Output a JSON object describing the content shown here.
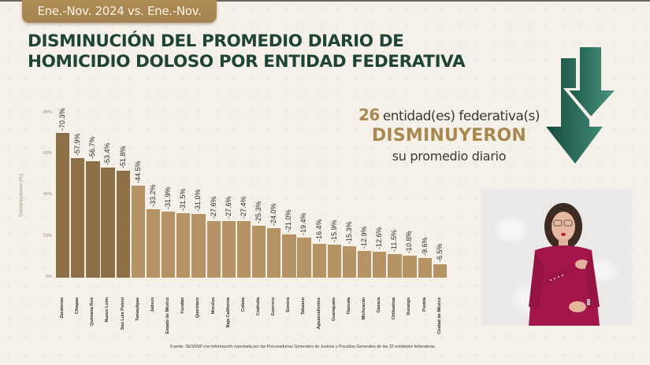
{
  "header": {
    "period_badge": "Ene.-Nov. 2024 vs. Ene.-Nov. 2025",
    "title_line1": "DISMINUCIÓN DEL PROMEDIO DIARIO DE",
    "title_line2": "HOMICIDIO DOLOSO POR ENTIDAD FEDERATIVA"
  },
  "summary": {
    "count": "26",
    "line1_text": "entidad(es) federativa(s)",
    "line2": "DISMINUYERON",
    "line3": "su promedio diario",
    "icon": "double-down-arrow-icon"
  },
  "colors": {
    "title_green": "#1e4435",
    "gold": "#a8884f",
    "bar_dark": "#8d7048",
    "bar_light": "#b59365",
    "arrow_dark": "#174a3c",
    "arrow_light": "#3f8a76"
  },
  "source": "Fuente: SESNSP con información reportada por las Procuradurías Generales de Justicia y Fiscalías Generales de las 32 entidades federativas.",
  "video_inset": {
    "description": "sign-language-interpreter"
  },
  "chart_data": {
    "type": "bar",
    "title": "DISMINUCIÓN DEL PROMEDIO DIARIO DE HOMICIDIO DOLOSO POR ENTIDAD FEDERATIVA",
    "subtitle": "Ene.-Nov. 2024 vs. Ene.-Nov. 2025",
    "xlabel": "",
    "ylabel": "Disminuciones (%)",
    "ylim": [
      0,
      80
    ],
    "yticks": [
      "0%",
      "20%",
      "40%",
      "60%",
      "80%"
    ],
    "grid": false,
    "legend": null,
    "categories": [
      "Zacatecas",
      "Chiapas",
      "Quintana Roo",
      "Nuevo León",
      "San Luis Potosí",
      "Tamaulipas",
      "Jalisco",
      "Estado de México",
      "Yucatán",
      "Querétaro",
      "Morelos",
      "Baja California",
      "Colima",
      "Coahuila",
      "Guerrero",
      "Sonora",
      "Tabasco",
      "Aguascalientes",
      "Guanajuato",
      "Tlaxcala",
      "Michoacán",
      "Oaxaca",
      "Chihuahua",
      "Durango",
      "Puebla",
      "Ciudad de México"
    ],
    "values": [
      70.3,
      57.9,
      56.7,
      53.4,
      51.8,
      44.5,
      33.2,
      31.9,
      31.5,
      31.0,
      27.6,
      27.6,
      27.4,
      25.3,
      24.0,
      21.0,
      19.4,
      16.4,
      15.9,
      15.3,
      12.9,
      12.6,
      11.5,
      10.8,
      9.6,
      6.5
    ],
    "labels": [
      "-70.3%",
      "-57.9%",
      "-56.7%",
      "-53.4%",
      "-51.8%",
      "-44.5%",
      "-33.2%",
      "-31.9%",
      "-31.5%",
      "-31.0%",
      "-27.6%",
      "-27.6%",
      "-27.4%",
      "-25.3%",
      "-24.0%",
      "-21.0%",
      "-19.4%",
      "-16.4%",
      "-15.9%",
      "-15.3%",
      "-12.9%",
      "-12.6%",
      "-11.5%",
      "-10.8%",
      "-9.6%",
      "-6.5%"
    ],
    "highlight_top_n": 5
  }
}
